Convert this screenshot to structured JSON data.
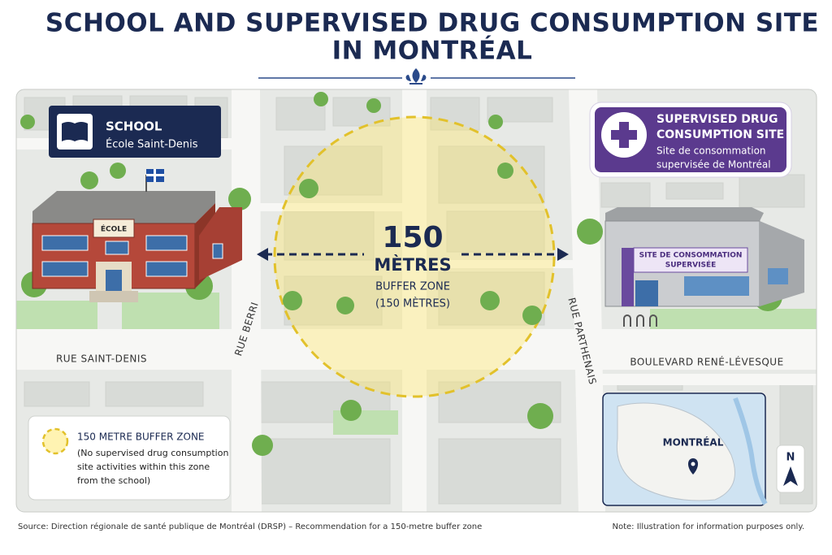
{
  "title": {
    "lines": [
      "SCHOOL AND SUPERVISED DRUG CONSUMPTION SITE",
      "IN MONTRÉAL"
    ]
  },
  "school": {
    "label": "SCHOOL",
    "name": "École Saint-Denis",
    "sign": "ÉCOLE"
  },
  "site": {
    "label_lines": [
      "SUPERVISED DRUG",
      "CONSUMPTION SITE"
    ],
    "name_lines": [
      "Site de consommation",
      "supervisée de Montréal"
    ],
    "sign_lines": [
      "SITE DE CONSOMMATION",
      "SUPERVISÉE"
    ]
  },
  "buffer": {
    "distance": 150,
    "unit": "MÈTRES",
    "label": "BUFFER ZONE",
    "note": "(150 MÈTRES)"
  },
  "streets": [
    "RUE SAINT-DENIS",
    "RUE BERRI",
    "RUE PARTHENAIS",
    "BOULEVARD RENÉ-LÉVESQUE"
  ],
  "legend": {
    "title": "150 METRE BUFFER ZONE",
    "lines": [
      "(No supervised drug consumption",
      "site activities within this zone",
      "from the school)"
    ]
  },
  "inset": {
    "label": "MONTRÉAL",
    "north": "N"
  },
  "footer": {
    "source": "Source: Direction régionale de santé publique de Montréal (DRSP) – Recommendation for a 150-metre buffer zone",
    "note": "Note: Illustration for information purposes only."
  }
}
